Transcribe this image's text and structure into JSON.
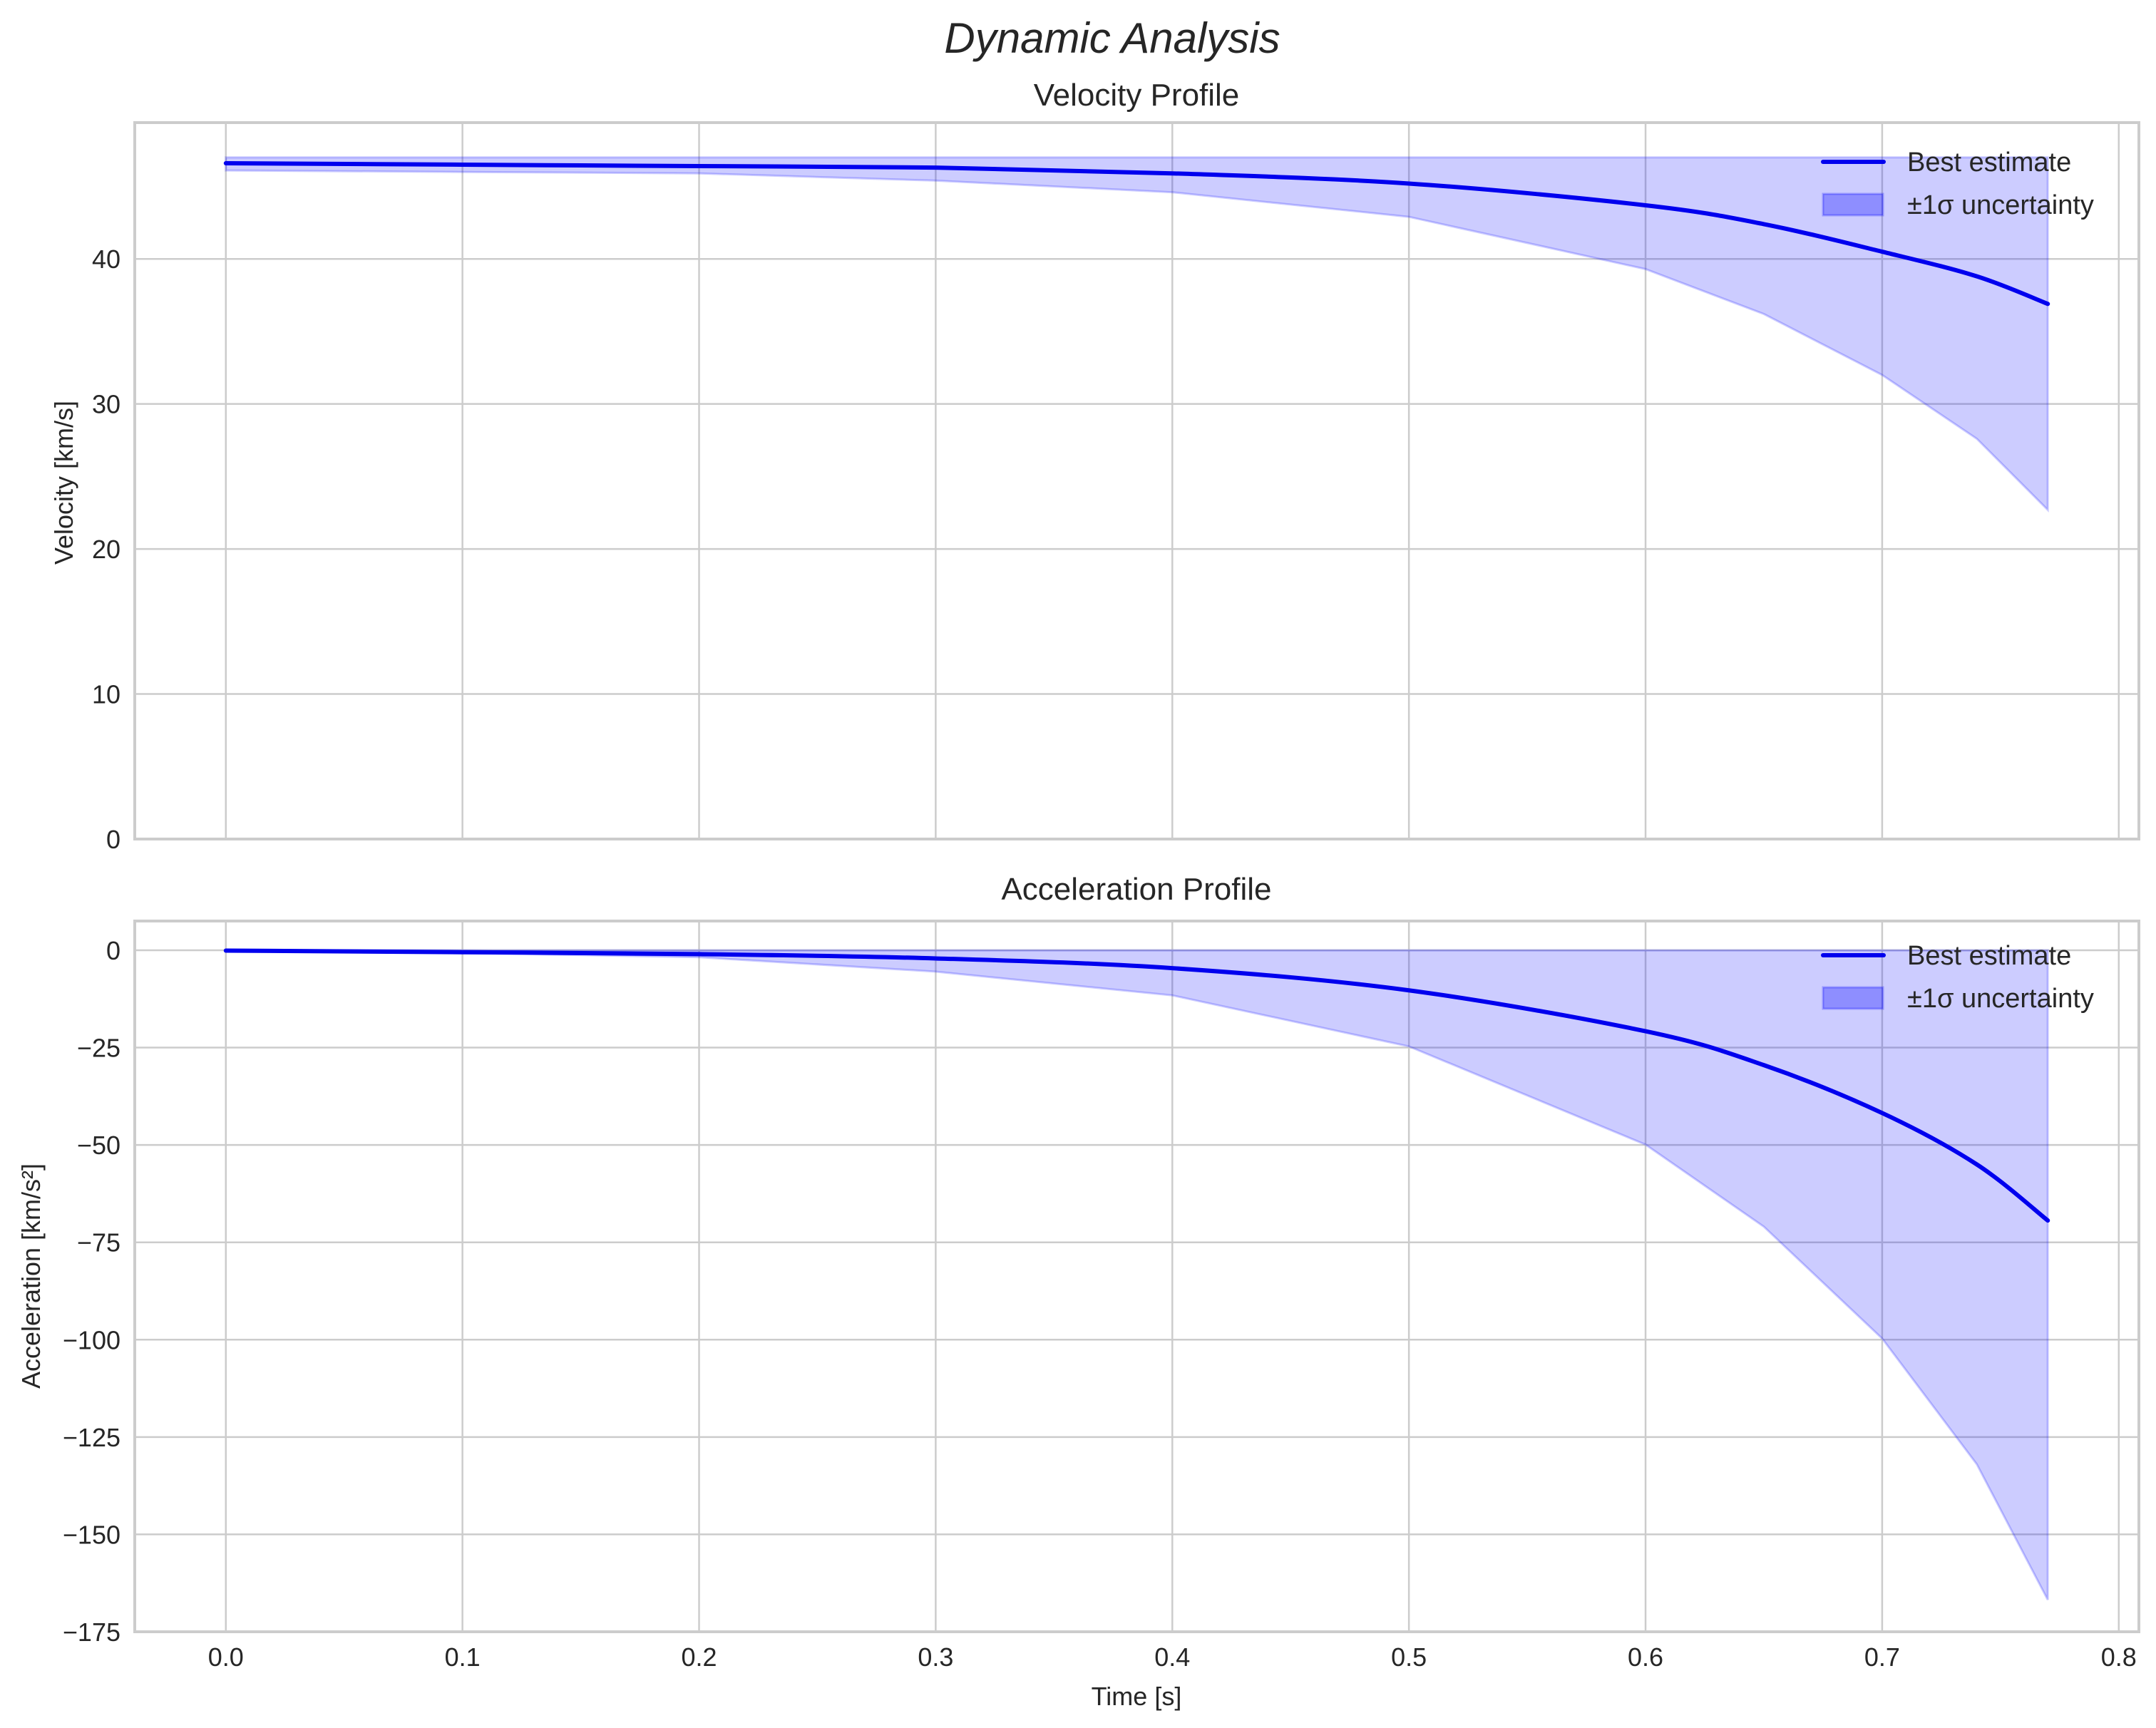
{
  "figure": {
    "title": "Dynamic Analysis"
  },
  "chart_data": [
    {
      "type": "line",
      "title": "Velocity Profile",
      "xlabel": "",
      "ylabel": "Velocity [km/s]",
      "xlim": [
        -0.0385,
        0.8085
      ],
      "ylim": [
        0,
        49.4
      ],
      "xticks": [
        "0.0",
        "0.1",
        "0.2",
        "0.3",
        "0.4",
        "0.5",
        "0.6",
        "0.7",
        "0.8"
      ],
      "yticks": [
        "0",
        "10",
        "20",
        "30",
        "40"
      ],
      "grid": true,
      "legend_position": "upper right",
      "x": [
        0.0,
        0.1,
        0.2,
        0.3,
        0.4,
        0.5,
        0.6,
        0.65,
        0.7,
        0.74,
        0.77
      ],
      "series": [
        {
          "name": "Best estimate",
          "kind": "line",
          "color": "#0000ee",
          "values": [
            46.6,
            46.5,
            46.4,
            46.3,
            45.9,
            45.2,
            43.7,
            42.4,
            40.5,
            38.8,
            36.9
          ]
        },
        {
          "name": "±1σ uncertainty",
          "kind": "band",
          "color": "#0000ff",
          "alpha": 0.2,
          "upper": [
            47.0,
            47.0,
            47.0,
            47.0,
            47.0,
            47.0,
            47.0,
            47.0,
            47.0,
            47.0,
            47.0
          ],
          "lower": [
            46.1,
            46.0,
            45.9,
            45.4,
            44.6,
            42.9,
            39.3,
            36.2,
            32.0,
            27.6,
            22.7
          ]
        }
      ]
    },
    {
      "type": "line",
      "title": "Acceleration Profile",
      "xlabel": "Time [s]",
      "ylabel": "Acceleration [km/s²]",
      "xlim": [
        -0.0385,
        0.8085
      ],
      "ylim": [
        -175,
        7.5
      ],
      "xticks": [
        "0.0",
        "0.1",
        "0.2",
        "0.3",
        "0.4",
        "0.5",
        "0.6",
        "0.7",
        "0.8"
      ],
      "yticks": [
        "0",
        "−25",
        "−50",
        "−75",
        "−100",
        "−125",
        "−150",
        "−175"
      ],
      "grid": true,
      "legend_position": "upper right",
      "x": [
        0.0,
        0.1,
        0.2,
        0.3,
        0.4,
        0.5,
        0.6,
        0.65,
        0.7,
        0.74,
        0.77
      ],
      "series": [
        {
          "name": "Best estimate",
          "kind": "line",
          "color": "#0000ee",
          "values": [
            -0.1,
            -0.5,
            -1.0,
            -2.1,
            -4.6,
            -10.3,
            -20.8,
            -29.5,
            -41.8,
            -55.0,
            -69.4
          ]
        },
        {
          "name": "±1σ uncertainty",
          "kind": "band",
          "color": "#0000ff",
          "alpha": 0.2,
          "upper": [
            0,
            0,
            0,
            0,
            0,
            0,
            0,
            0,
            0,
            0,
            0
          ],
          "lower": [
            -0.3,
            -0.7,
            -1.8,
            -5.5,
            -11.6,
            -24.7,
            -49.9,
            -71.0,
            -99.7,
            -132.0,
            -166.8
          ]
        }
      ]
    }
  ],
  "legend": {
    "line_label": "Best estimate",
    "band_label": "±1σ uncertainty"
  }
}
